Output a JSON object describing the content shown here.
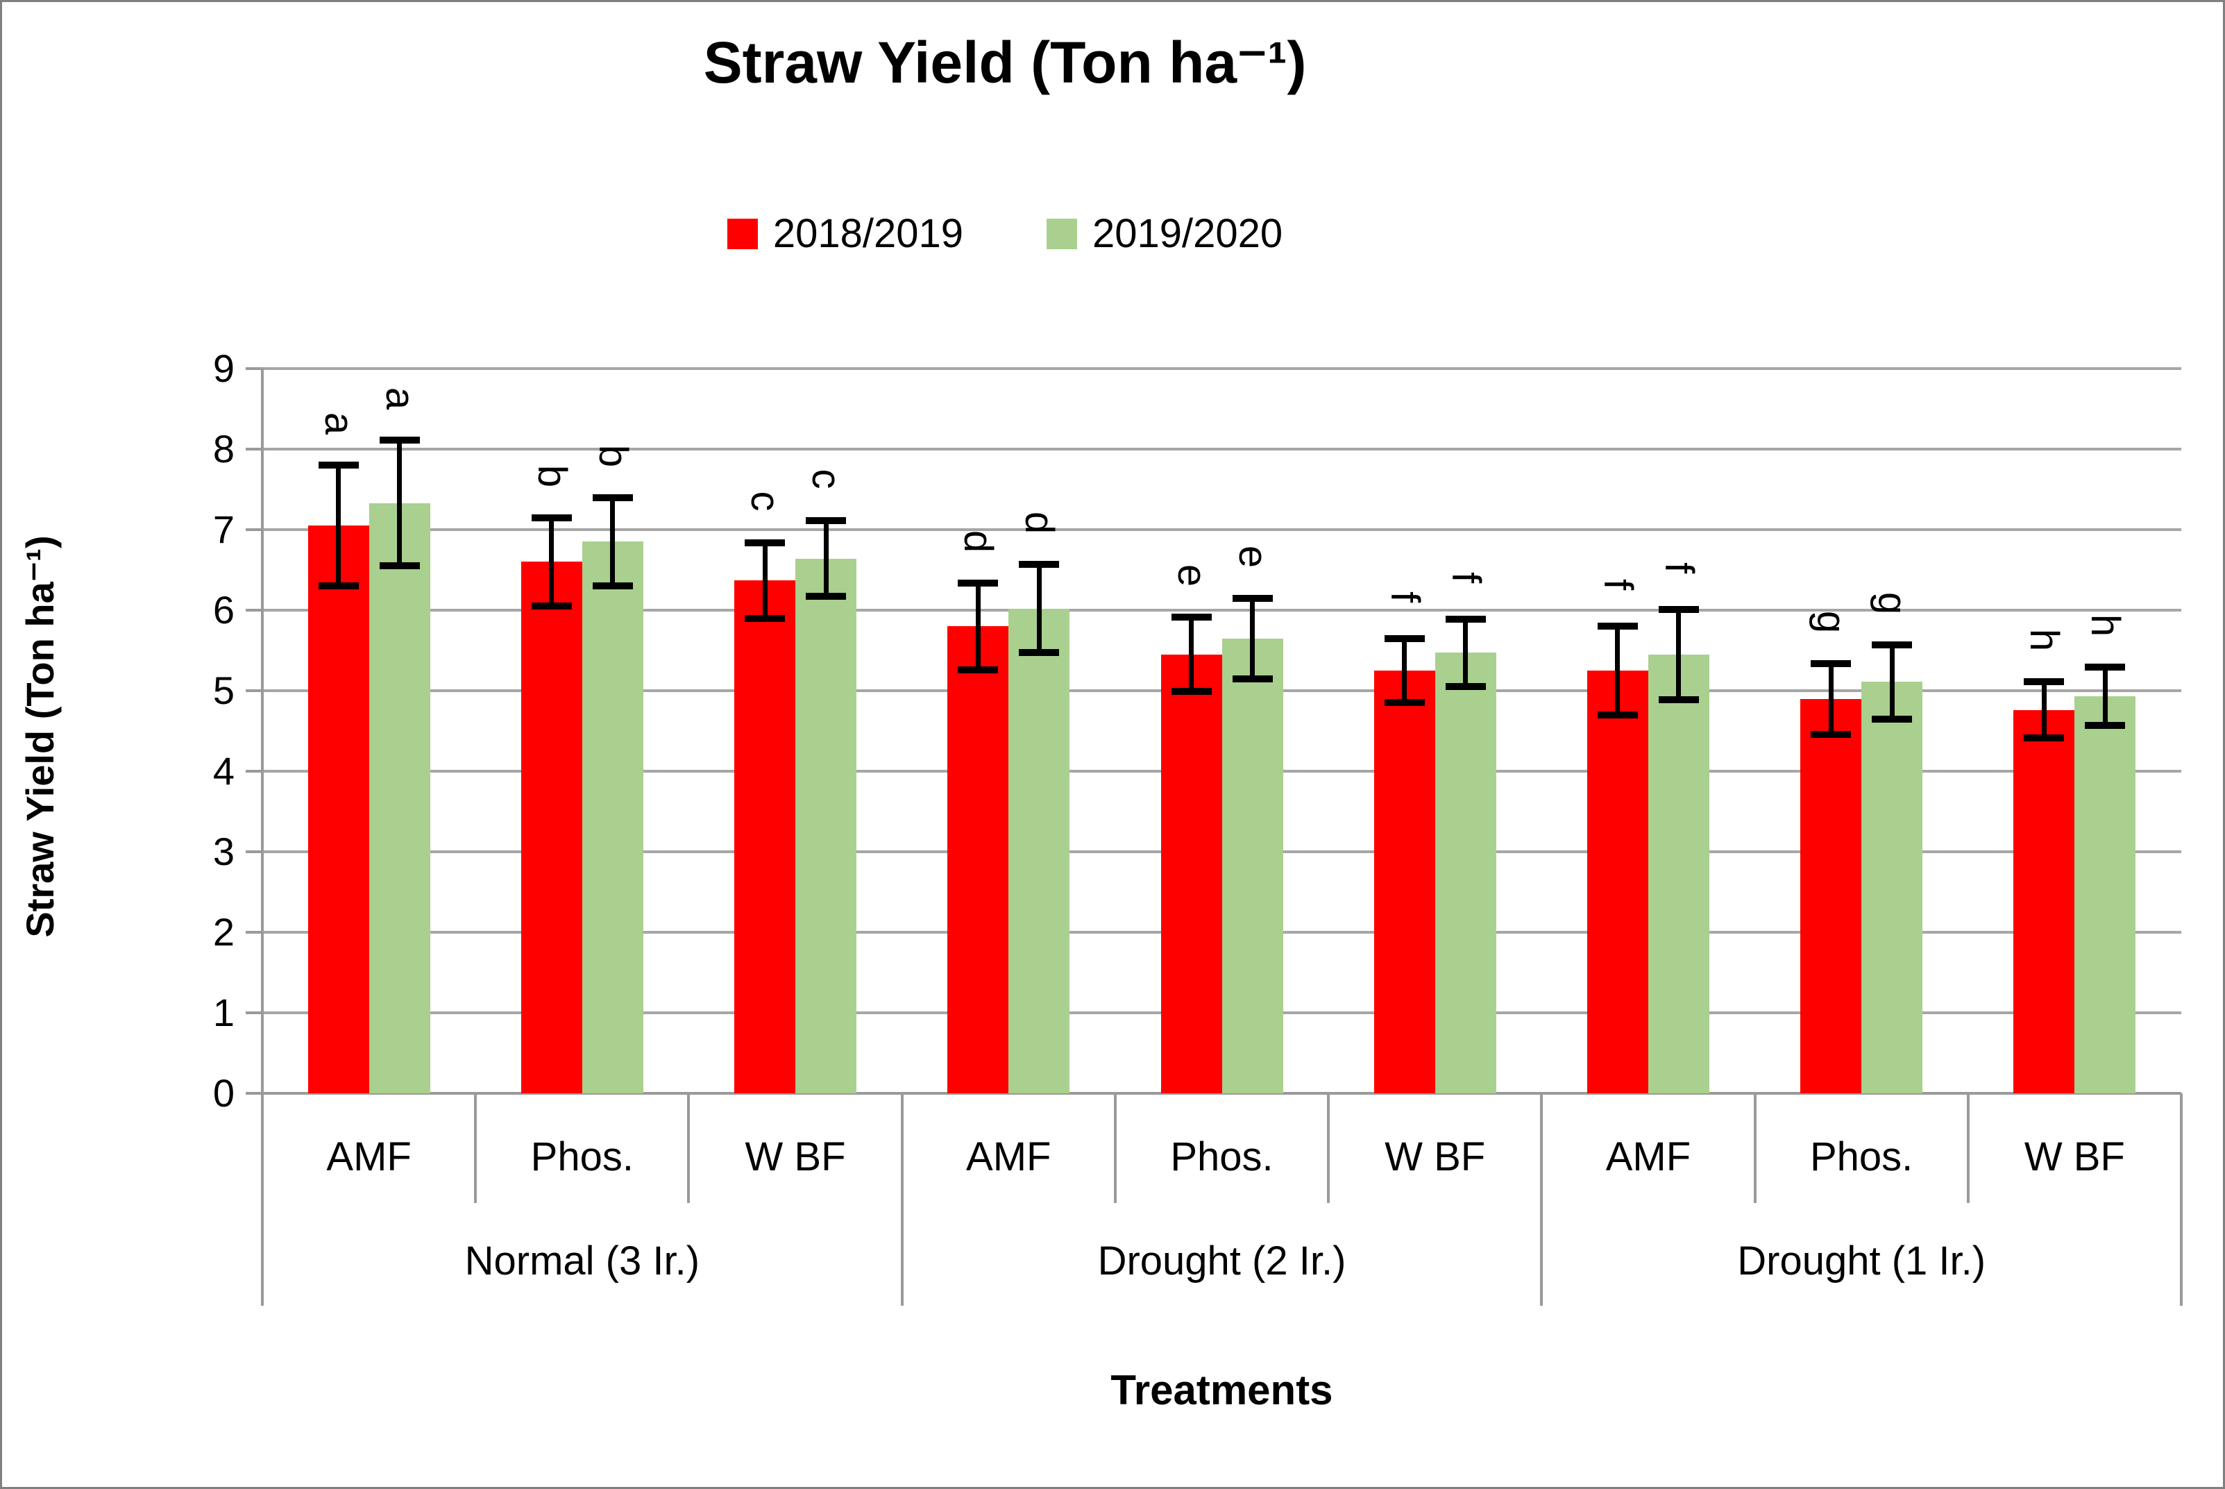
{
  "figure": {
    "title": "Straw Yield (Ton ha⁻¹)"
  },
  "legend": [
    {
      "label": "2018/2019",
      "color": "#FF0000"
    },
    {
      "label": "2019/2020",
      "color": "#A9D08E"
    }
  ],
  "y_axis": {
    "title": "Straw Yield (Ton ha⁻¹)",
    "tick_labels": [
      "0",
      "1",
      "2",
      "3",
      "4",
      "5",
      "6",
      "7",
      "8",
      "9"
    ]
  },
  "x_axis": {
    "title": "Treatments"
  },
  "chart_data": {
    "type": "bar",
    "title": "Straw Yield (Ton ha⁻¹)",
    "xlabel": "Treatments",
    "ylabel": "Straw Yield (Ton ha⁻¹)",
    "ylim": [
      0,
      9
    ],
    "y_ticks": [
      0,
      1,
      2,
      3,
      4,
      5,
      6,
      7,
      8,
      9
    ],
    "grid": true,
    "legend_position": "top",
    "groups": [
      {
        "label": "Normal (3 Ir.)",
        "treatments": [
          "AMF",
          "Phos.",
          "W BF"
        ]
      },
      {
        "label": "Drought (2 Ir.)",
        "treatments": [
          "AMF",
          "Phos.",
          "W BF"
        ]
      },
      {
        "label": "Drought (1 Ir.)",
        "treatments": [
          "AMF",
          "Phos.",
          "W BF"
        ]
      }
    ],
    "series": [
      {
        "name": "2018/2019",
        "color": "#FF0000",
        "values": [
          7.05,
          6.6,
          6.37,
          5.8,
          5.45,
          5.25,
          5.25,
          4.9,
          4.76
        ],
        "errors": [
          0.75,
          0.55,
          0.47,
          0.54,
          0.46,
          0.4,
          0.55,
          0.44,
          0.35
        ]
      },
      {
        "name": "2019/2020",
        "color": "#A9D08E",
        "values": [
          7.33,
          6.85,
          6.64,
          6.02,
          5.65,
          5.47,
          5.45,
          5.11,
          4.93
        ],
        "errors": [
          0.78,
          0.55,
          0.47,
          0.55,
          0.5,
          0.42,
          0.56,
          0.46,
          0.36
        ]
      }
    ],
    "sig_letters": [
      "a",
      "b",
      "c",
      "d",
      "e",
      "f",
      "f",
      "g",
      "h"
    ]
  },
  "style": {
    "grid_color": "#A6A6A6",
    "axis_color": "#9a9a9a",
    "error_bar_color": "#000000"
  }
}
